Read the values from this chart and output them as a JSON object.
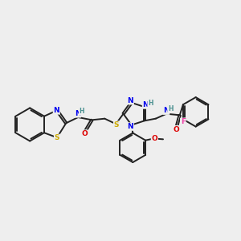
{
  "bg_color": "#eeeeee",
  "bond_color": "#222222",
  "bond_width": 1.4,
  "atom_colors": {
    "N": "#0000ee",
    "S": "#ccaa00",
    "O": "#dd0000",
    "F": "#ee44aa",
    "H": "#4a9090",
    "C": "#222222"
  },
  "font_size": 6.5,
  "fig_w": 3.0,
  "fig_h": 3.0,
  "dpi": 100
}
